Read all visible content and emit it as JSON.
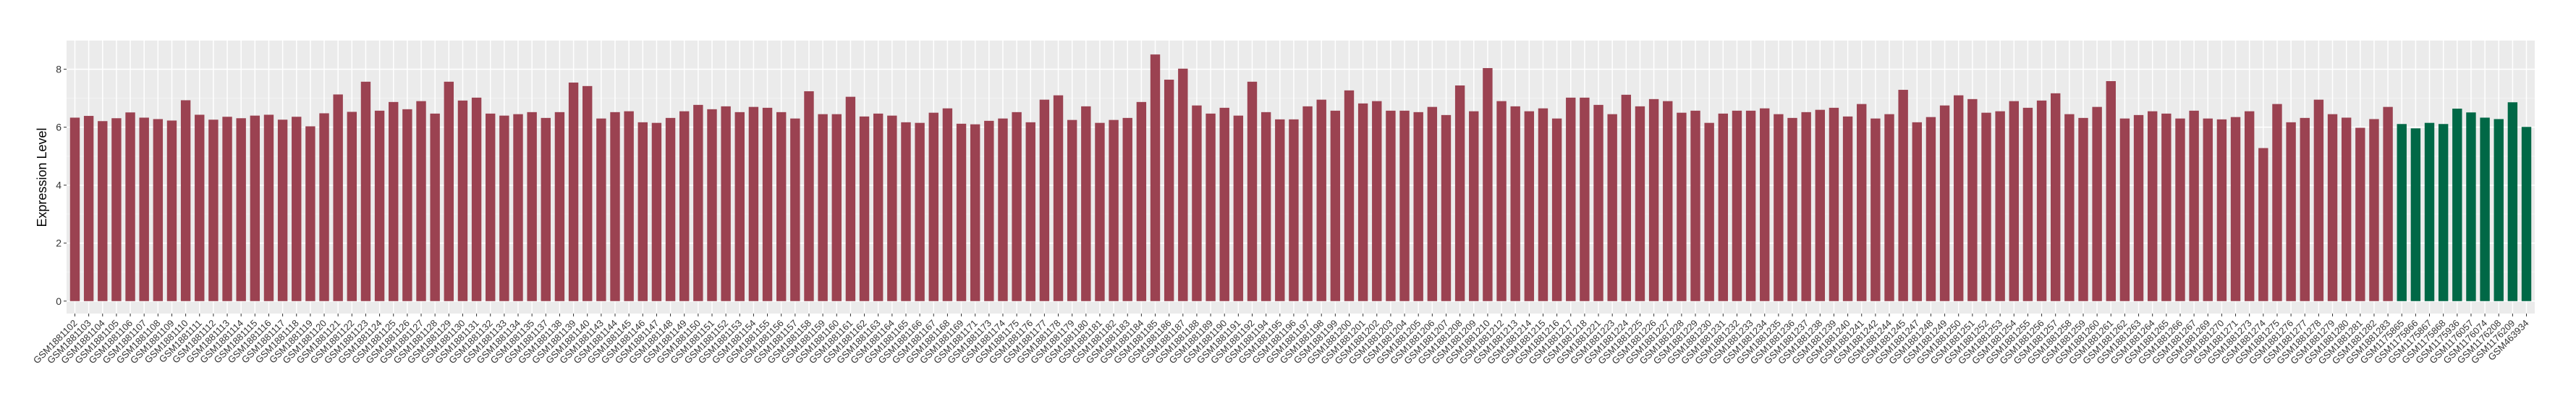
{
  "chart_data": {
    "type": "bar",
    "title": "",
    "xlabel": "",
    "ylabel": "Expression Level",
    "ylim": [
      -0.43,
      8.99
    ],
    "yticks": [
      0,
      2,
      4,
      6,
      8
    ],
    "grid": true,
    "background": "#EBEBEB",
    "legend": "none",
    "series": [
      {
        "color": "#9B4251",
        "categories": [
          "GSM1881102",
          "GSM1881103",
          "GSM1881104",
          "GSM1881105",
          "GSM1881106",
          "GSM1881107",
          "GSM1881108",
          "GSM1881109",
          "GSM1881110",
          "GSM1881111",
          "GSM1881112",
          "GSM1881113",
          "GSM1881114",
          "GSM1881115",
          "GSM1881116",
          "GSM1881117",
          "GSM1881118",
          "GSM1881119",
          "GSM1881120",
          "GSM1881121",
          "GSM1881122",
          "GSM1881123",
          "GSM1881124",
          "GSM1881125",
          "GSM1881126",
          "GSM1881127",
          "GSM1881128",
          "GSM1881129",
          "GSM1881130",
          "GSM1881131",
          "GSM1881132",
          "GSM1881133",
          "GSM1881134",
          "GSM1881135",
          "GSM1881137",
          "GSM1881138",
          "GSM1881139",
          "GSM1881140",
          "GSM1881143",
          "GSM1881144",
          "GSM1881145",
          "GSM1881146",
          "GSM1881147",
          "GSM1881148",
          "GSM1881149",
          "GSM1881150",
          "GSM1881151",
          "GSM1881152",
          "GSM1881153",
          "GSM1881154",
          "GSM1881155",
          "GSM1881156",
          "GSM1881157",
          "GSM1881158",
          "GSM1881159",
          "GSM1881160",
          "GSM1881161",
          "GSM1881162",
          "GSM1881163",
          "GSM1881164",
          "GSM1881165",
          "GSM1881166",
          "GSM1881167",
          "GSM1881168",
          "GSM1881169",
          "GSM1881171",
          "GSM1881173",
          "GSM1881174",
          "GSM1881175",
          "GSM1881176",
          "GSM1881177",
          "GSM1881178",
          "GSM1881179",
          "GSM1881180",
          "GSM1881181",
          "GSM1881182",
          "GSM1881183",
          "GSM1881184",
          "GSM1881185",
          "GSM1881186",
          "GSM1881187",
          "GSM1881188",
          "GSM1881189",
          "GSM1881190",
          "GSM1881191",
          "GSM1881192",
          "GSM1881194",
          "GSM1881195",
          "GSM1881196",
          "GSM1881197",
          "GSM1881198",
          "GSM1881199",
          "GSM1881200",
          "GSM1881201",
          "GSM1881202",
          "GSM1881203",
          "GSM1881204",
          "GSM1881205",
          "GSM1881206",
          "GSM1881207",
          "GSM1881208",
          "GSM1881209",
          "GSM1881210",
          "GSM1881212",
          "GSM1881213",
          "GSM1881214",
          "GSM1881215",
          "GSM1881216",
          "GSM1881217",
          "GSM1881218",
          "GSM1881221",
          "GSM1881223",
          "GSM1881224",
          "GSM1881225",
          "GSM1881226",
          "GSM1881227",
          "GSM1881228",
          "GSM1881229",
          "GSM1881230",
          "GSM1881231",
          "GSM1881232",
          "GSM1881233",
          "GSM1881234",
          "GSM1881235",
          "GSM1881236",
          "GSM1881237",
          "GSM1881238",
          "GSM1881239",
          "GSM1881240",
          "GSM1881241",
          "GSM1881242",
          "GSM1881244",
          "GSM1881245",
          "GSM1881247",
          "GSM1881248",
          "GSM1881249",
          "GSM1881250",
          "GSM1881251",
          "GSM1881252",
          "GSM1881253",
          "GSM1881254",
          "GSM1881255",
          "GSM1881256",
          "GSM1881257",
          "GSM1881258",
          "GSM1881259",
          "GSM1881260",
          "GSM1881261",
          "GSM1881262",
          "GSM1881263",
          "GSM1881264",
          "GSM1881265",
          "GSM1881266",
          "GSM1881267",
          "GSM1881269",
          "GSM1881270",
          "GSM1881271",
          "GSM1881273",
          "GSM1881274",
          "GSM1881275",
          "GSM1881276",
          "GSM1881277",
          "GSM1881278",
          "GSM1881279",
          "GSM1881280",
          "GSM1881281",
          "GSM1881282",
          "GSM1881283"
        ],
        "values": [
          6.33,
          6.39,
          6.21,
          6.31,
          6.51,
          6.33,
          6.28,
          6.23,
          6.93,
          6.43,
          6.26,
          6.36,
          6.31,
          6.4,
          6.43,
          6.26,
          6.36,
          6.03,
          6.48,
          7.13,
          6.53,
          7.57,
          6.57,
          6.87,
          6.62,
          6.9,
          6.47,
          7.57,
          6.92,
          7.02,
          6.47,
          6.4,
          6.45,
          6.52,
          6.32,
          6.52,
          7.54,
          7.42,
          6.3,
          6.52,
          6.55,
          6.17,
          6.15,
          6.32,
          6.55,
          6.77,
          6.62,
          6.72,
          6.52,
          6.7,
          6.67,
          6.52,
          6.3,
          7.24,
          6.45,
          6.45,
          7.05,
          6.37,
          6.47,
          6.4,
          6.17,
          6.15,
          6.5,
          6.65,
          6.12,
          6.1,
          6.22,
          6.3,
          6.52,
          6.17,
          6.95,
          7.1,
          6.25,
          6.72,
          6.15,
          6.25,
          6.32,
          6.87,
          8.51,
          7.64,
          8.02,
          6.75,
          6.47,
          6.67,
          6.4,
          7.57,
          6.52,
          6.27,
          6.27,
          6.72,
          6.95,
          6.57,
          7.27,
          6.82,
          6.9,
          6.57,
          6.57,
          6.52,
          6.7,
          6.42,
          7.44,
          6.55,
          8.04,
          6.9,
          6.72,
          6.55,
          6.65,
          6.3,
          7.02,
          7.02,
          6.77,
          6.45,
          7.12,
          6.72,
          6.97,
          6.9,
          6.5,
          6.57,
          6.15,
          6.47,
          6.57,
          6.57,
          6.65,
          6.45,
          6.32,
          6.52,
          6.6,
          6.67,
          6.37,
          6.8,
          6.3,
          6.45,
          7.29,
          6.17,
          6.35,
          6.75,
          7.1,
          6.97,
          6.5,
          6.55,
          6.9,
          6.67,
          6.92,
          7.17,
          6.45,
          6.32,
          6.7,
          7.59,
          6.3,
          6.42,
          6.55,
          6.47,
          6.3,
          6.57,
          6.3,
          6.27,
          6.35,
          6.55,
          5.28,
          6.8,
          6.17,
          6.32,
          6.95,
          6.45,
          6.33,
          5.98,
          6.28,
          6.7
        ]
      },
      {
        "color": "#006846",
        "categories": [
          "GSM1175865",
          "GSM1175866",
          "GSM1175867",
          "GSM1175868",
          "GSM1175936",
          "GSM1176057",
          "GSM1176074",
          "GSM1176208",
          "GSM1176209",
          "GSM463934"
        ],
        "values": [
          6.11,
          5.96,
          6.15,
          6.11,
          6.64,
          6.51,
          6.33,
          6.28,
          6.86,
          6.01
        ]
      }
    ]
  }
}
